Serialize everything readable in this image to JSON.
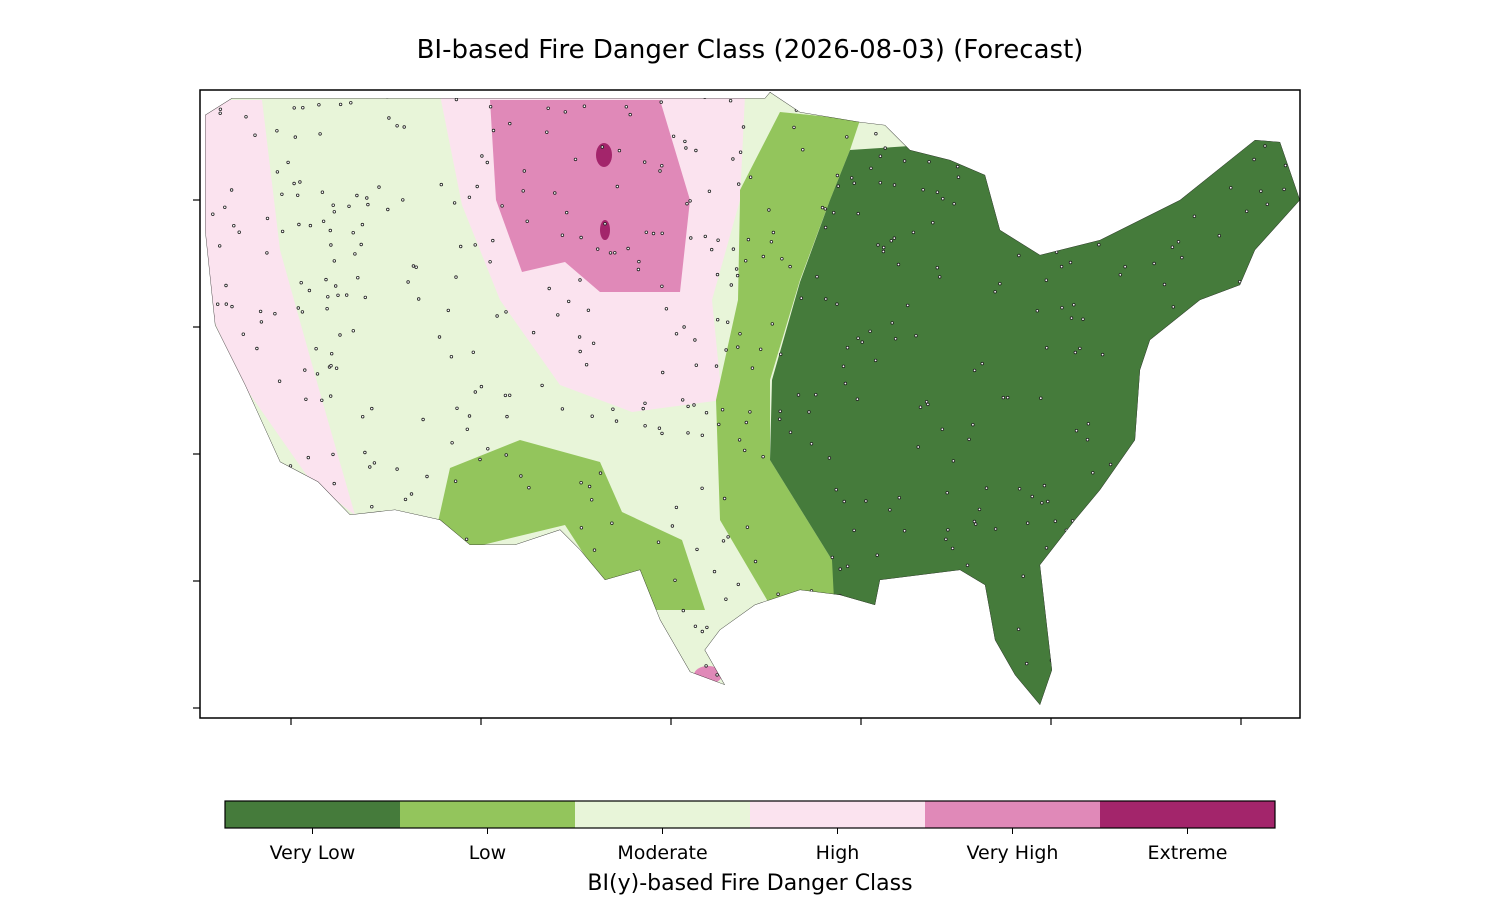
{
  "title": "BI-based Fire Danger Class (2026-08-03) (Forecast)",
  "colorbar": {
    "label": "BI(y)-based Fire Danger Class",
    "classes": [
      {
        "label": "Very Low",
        "color": "#457b3b"
      },
      {
        "label": "Low",
        "color": "#93c55c"
      },
      {
        "label": "Moderate",
        "color": "#e8f5d9"
      },
      {
        "label": "High",
        "color": "#fbe3ef"
      },
      {
        "label": "Very High",
        "color": "#e089b8"
      },
      {
        "label": "Extreme",
        "color": "#a3256b"
      }
    ]
  }
}
